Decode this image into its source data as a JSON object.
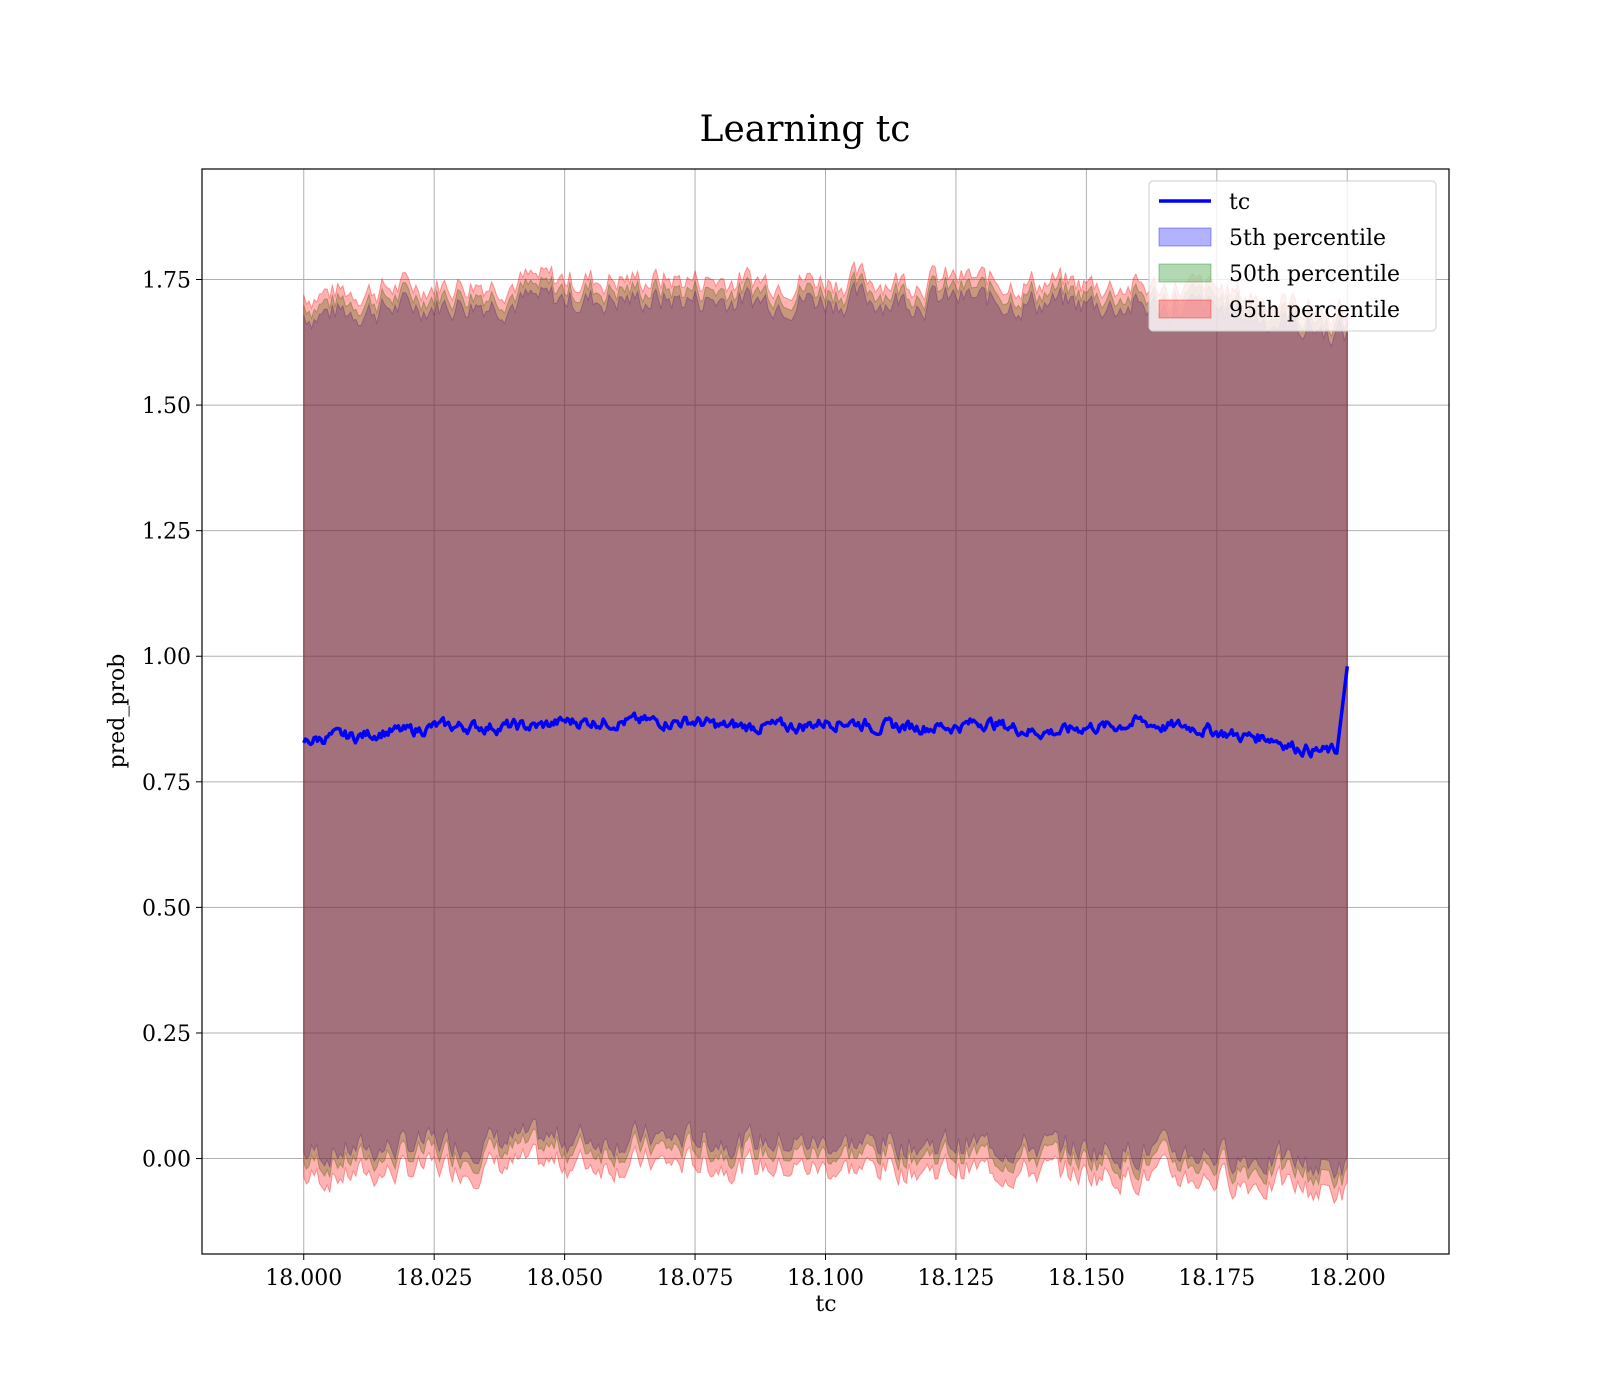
{
  "chart_data": {
    "type": "line",
    "title": "Learning tc",
    "xlabel": "tc",
    "ylabel": "pred_prob",
    "xlim": [
      17.9805,
      18.2195
    ],
    "ylim": [
      -0.19,
      1.97
    ],
    "xticks": [
      18.0,
      18.025,
      18.05,
      18.075,
      18.1,
      18.125,
      18.15,
      18.175,
      18.2
    ],
    "xtick_labels": [
      "18.000",
      "18.025",
      "18.050",
      "18.075",
      "18.100",
      "18.125",
      "18.150",
      "18.175",
      "18.200"
    ],
    "yticks": [
      0.0,
      0.25,
      0.5,
      0.75,
      1.0,
      1.25,
      1.5,
      1.75
    ],
    "ytick_labels": [
      "0.00",
      "0.25",
      "0.50",
      "0.75",
      "1.00",
      "1.25",
      "1.50",
      "1.75"
    ],
    "grid": true,
    "legend_position": "top-right",
    "series": [
      {
        "name": "tc",
        "kind": "line",
        "color": "#0000ff",
        "x": [
          18.0,
          18.005,
          18.01,
          18.015,
          18.02,
          18.025,
          18.03,
          18.035,
          18.04,
          18.045,
          18.05,
          18.055,
          18.06,
          18.065,
          18.07,
          18.075,
          18.08,
          18.085,
          18.09,
          18.095,
          18.1,
          18.105,
          18.11,
          18.115,
          18.12,
          18.125,
          18.13,
          18.135,
          18.14,
          18.145,
          18.15,
          18.155,
          18.16,
          18.165,
          18.17,
          18.175,
          18.18,
          18.185,
          18.19,
          18.195,
          18.198,
          18.2
        ],
        "y": [
          0.83,
          0.84,
          0.84,
          0.85,
          0.85,
          0.86,
          0.86,
          0.86,
          0.86,
          0.86,
          0.87,
          0.87,
          0.87,
          0.87,
          0.87,
          0.87,
          0.86,
          0.86,
          0.86,
          0.86,
          0.87,
          0.87,
          0.86,
          0.86,
          0.86,
          0.86,
          0.87,
          0.86,
          0.85,
          0.85,
          0.86,
          0.86,
          0.87,
          0.86,
          0.86,
          0.85,
          0.84,
          0.84,
          0.82,
          0.81,
          0.81,
          0.98
        ]
      },
      {
        "name": "5th percentile",
        "kind": "band",
        "color": "#0000ff",
        "opacity": 0.3,
        "x": [
          18.0,
          18.025,
          18.05,
          18.075,
          18.1,
          18.125,
          18.15,
          18.175,
          18.2
        ],
        "lower": [
          0.01,
          0.03,
          0.04,
          0.04,
          0.03,
          0.03,
          0.02,
          0.01,
          -0.02
        ],
        "upper": [
          1.68,
          1.7,
          1.71,
          1.71,
          1.71,
          1.71,
          1.7,
          1.69,
          1.64
        ]
      },
      {
        "name": "50th percentile",
        "kind": "band",
        "color": "#008000",
        "opacity": 0.3,
        "x": [
          18.0,
          18.025,
          18.05,
          18.075,
          18.1,
          18.125,
          18.15,
          18.175,
          18.2
        ],
        "lower": [
          -0.01,
          0.01,
          0.02,
          0.02,
          0.01,
          0.01,
          0.0,
          -0.01,
          -0.04
        ],
        "upper": [
          1.7,
          1.72,
          1.73,
          1.73,
          1.73,
          1.73,
          1.72,
          1.71,
          1.66
        ]
      },
      {
        "name": "95th percentile",
        "kind": "band",
        "color": "#ff0000",
        "opacity": 0.3,
        "x": [
          18.0,
          18.025,
          18.05,
          18.075,
          18.1,
          18.125,
          18.15,
          18.175,
          18.2
        ],
        "lower": [
          -0.04,
          -0.02,
          -0.01,
          -0.01,
          -0.02,
          -0.02,
          -0.03,
          -0.04,
          -0.07
        ],
        "upper": [
          1.72,
          1.74,
          1.75,
          1.75,
          1.75,
          1.75,
          1.74,
          1.73,
          1.68
        ]
      }
    ]
  }
}
